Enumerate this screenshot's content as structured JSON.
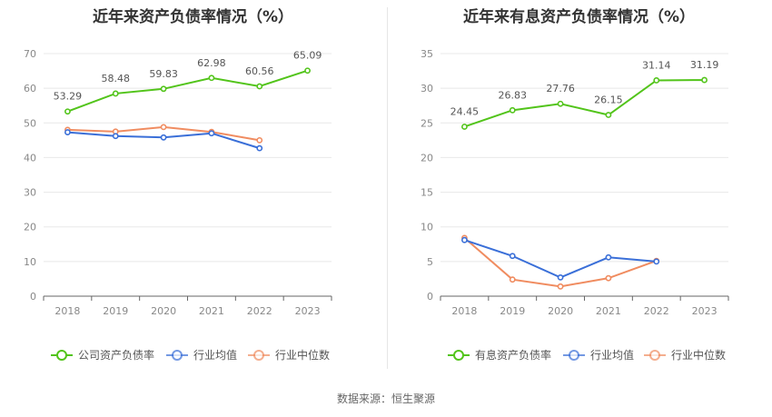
{
  "source_text": "数据来源：恒生聚源",
  "chart_data": [
    {
      "type": "line",
      "title": "近年来资产负债率情况（%）",
      "categories": [
        "2018",
        "2019",
        "2020",
        "2021",
        "2022",
        "2023"
      ],
      "ylim": [
        0,
        70
      ],
      "yticks": [
        0,
        10,
        20,
        30,
        40,
        50,
        60,
        70
      ],
      "grid": true,
      "legend_position": "bottom",
      "series": [
        {
          "name": "公司资产负债率",
          "color": "#52c41a",
          "values": [
            53.29,
            58.48,
            59.83,
            62.98,
            60.56,
            65.09
          ],
          "labels": [
            "53.29",
            "58.48",
            "59.83",
            "62.98",
            "60.56",
            "65.09"
          ]
        },
        {
          "name": "行业均值",
          "color": "#3a6fd8",
          "values": [
            47.3,
            46.2,
            45.8,
            47.0,
            42.7,
            null
          ],
          "labels": null
        },
        {
          "name": "行业中位数",
          "color": "#f08c60",
          "values": [
            48.0,
            47.5,
            48.8,
            47.4,
            45.0,
            null
          ],
          "labels": null
        }
      ]
    },
    {
      "type": "line",
      "title": "近年来有息资产负债率情况（%）",
      "categories": [
        "2018",
        "2019",
        "2020",
        "2021",
        "2022",
        "2023"
      ],
      "ylim": [
        0,
        35
      ],
      "yticks": [
        0,
        5,
        10,
        15,
        20,
        25,
        30,
        35
      ],
      "grid": true,
      "legend_position": "bottom",
      "series": [
        {
          "name": "有息资产负债率",
          "color": "#52c41a",
          "values": [
            24.45,
            26.83,
            27.76,
            26.15,
            31.14,
            31.19
          ],
          "labels": [
            "24.45",
            "26.83",
            "27.76",
            "26.15",
            "31.14",
            "31.19"
          ]
        },
        {
          "name": "行业均值",
          "color": "#3a6fd8",
          "values": [
            8.1,
            5.8,
            2.7,
            5.6,
            5.0,
            null
          ],
          "labels": null
        },
        {
          "name": "行业中位数",
          "color": "#f08c60",
          "values": [
            8.4,
            2.4,
            1.4,
            2.6,
            5.1,
            null
          ],
          "labels": null
        }
      ]
    }
  ]
}
